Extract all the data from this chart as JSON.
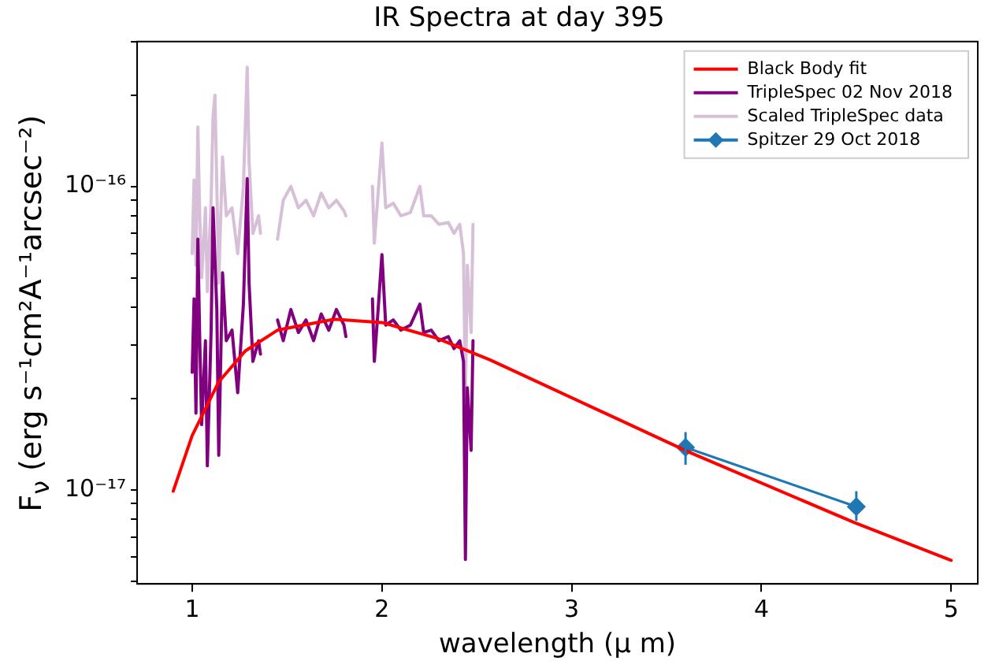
{
  "chart_data": {
    "type": "line",
    "title": "IR Spectra at day 395",
    "xlabel": "wavelength (μ m)",
    "ylabel": "F$_{ν}$ (erg s⁻¹cm²A⁻¹arcsec⁻²)",
    "log": "y",
    "grid": false,
    "legend": "top right",
    "xlim": [
      0.71,
      5.14
    ],
    "xticks": [
      1,
      2,
      3,
      4,
      5
    ],
    "ylim": [
      4.9e-18,
      3e-16
    ],
    "yticks": [
      {
        "value": 5e-18,
        "label": null
      },
      {
        "value": 6e-18,
        "label": null
      },
      {
        "value": 7e-18,
        "label": null
      },
      {
        "value": 8e-18,
        "label": null
      },
      {
        "value": 9e-18,
        "label": null
      },
      {
        "value": 1e-17,
        "label": "10⁻¹⁷"
      },
      {
        "value": 2e-17,
        "label": null
      },
      {
        "value": 3e-17,
        "label": null
      },
      {
        "value": 4e-17,
        "label": null
      },
      {
        "value": 5e-17,
        "label": null
      },
      {
        "value": 6e-17,
        "label": null
      },
      {
        "value": 7e-17,
        "label": null
      },
      {
        "value": 8e-17,
        "label": null
      },
      {
        "value": 9e-17,
        "label": null
      },
      {
        "value": 1e-16,
        "label": "10⁻¹⁶"
      },
      {
        "value": 2e-16,
        "label": null
      },
      {
        "value": 3e-16,
        "label": null
      }
    ],
    "series": [
      {
        "name": "Black Body fit",
        "color": "#ff0000",
        "marker": "none",
        "x": [
          0.9,
          1.0,
          1.14,
          1.28,
          1.45,
          1.75,
          2.0,
          2.29,
          2.47,
          2.57,
          3.62,
          4.49,
          5.0
        ],
        "values": [
          9.9e-18,
          1.51e-17,
          2.27e-17,
          2.87e-17,
          3.36e-17,
          3.65e-17,
          3.56e-17,
          3.16e-17,
          2.84e-17,
          2.68e-17,
          1.33e-17,
          7.8e-18,
          5.86e-18
        ]
      },
      {
        "name": "TripleSpec 02 Nov 2018",
        "color": "#800080",
        "marker": "none",
        "x": [
          1.0,
          1.01,
          1.02,
          1.03,
          1.04,
          1.05,
          1.07,
          1.08,
          1.1,
          1.11,
          1.13,
          1.14,
          1.16,
          1.18,
          1.21,
          1.24,
          1.27,
          1.29,
          1.3,
          1.32,
          1.35,
          1.36,
          1.4,
          1.45,
          1.48,
          1.52,
          1.56,
          1.6,
          1.64,
          1.68,
          1.72,
          1.76,
          1.8,
          1.81,
          1.88,
          1.95,
          1.96,
          1.98,
          2.0,
          2.02,
          2.06,
          2.1,
          2.15,
          2.2,
          2.22,
          2.26,
          2.3,
          2.35,
          2.38,
          2.41,
          2.43,
          2.44,
          2.45,
          2.47,
          2.48
        ],
        "values": [
          2.44e-17,
          4.26e-17,
          1.79e-17,
          6.7e-17,
          3.1e-17,
          1.64e-17,
          3.1e-17,
          1.2e-17,
          3.36e-17,
          8.5e-17,
          3.93e-17,
          1.3e-17,
          5.19e-17,
          3.1e-17,
          3.36e-17,
          2.09e-17,
          4.09e-17,
          1.06e-16,
          4.79e-17,
          2.65e-17,
          3.1e-17,
          2.8e-17,
          null,
          3.63e-17,
          3.1e-17,
          3.93e-17,
          3.3e-17,
          3.63e-17,
          3.1e-17,
          3.8e-17,
          3.36e-17,
          3.93e-17,
          3.49e-17,
          3.2e-17,
          null,
          4.26e-17,
          2.65e-17,
          3.93e-17,
          5.96e-17,
          3.49e-17,
          3.63e-17,
          3.36e-17,
          3.49e-17,
          4.09e-17,
          3.3e-17,
          3.36e-17,
          3.1e-17,
          3.2e-17,
          2.92e-17,
          3.1e-17,
          2.65e-17,
          5.9e-18,
          2.17e-17,
          1.35e-17,
          3.1e-17
        ]
      },
      {
        "name": "Scaled TripleSpec data",
        "color": "#d8bfd8",
        "marker": "none",
        "x": [
          1.0,
          1.01,
          1.02,
          1.03,
          1.04,
          1.05,
          1.07,
          1.08,
          1.1,
          1.11,
          1.12,
          1.13,
          1.14,
          1.16,
          1.18,
          1.21,
          1.24,
          1.27,
          1.29,
          1.3,
          1.32,
          1.35,
          1.36,
          1.4,
          1.45,
          1.48,
          1.52,
          1.56,
          1.6,
          1.64,
          1.68,
          1.72,
          1.76,
          1.8,
          1.81,
          1.88,
          1.95,
          1.96,
          1.98,
          2.0,
          2.02,
          2.06,
          2.1,
          2.15,
          2.2,
          2.22,
          2.26,
          2.3,
          2.35,
          2.38,
          2.41,
          2.43,
          2.44,
          2.45,
          2.47,
          2.48
        ],
        "values": [
          6e-17,
          1.05e-16,
          5.5e-17,
          1.57e-16,
          8e-17,
          5e-17,
          8.5e-17,
          4.5e-17,
          9e-17,
          1.7e-16,
          2e-16,
          1e-16,
          4.8e-17,
          1.25e-16,
          8e-17,
          8.5e-17,
          6e-17,
          1e-16,
          2.47e-16,
          1.2e-16,
          7e-17,
          8e-17,
          7e-17,
          null,
          6.7e-17,
          9e-17,
          1e-16,
          8.5e-17,
          9e-17,
          8e-17,
          9.5e-17,
          8.5e-17,
          9e-17,
          8.3e-17,
          8e-17,
          null,
          1e-16,
          6.5e-17,
          9.5e-17,
          1.39e-16,
          8.5e-17,
          8.8e-17,
          8e-17,
          8.2e-17,
          1e-16,
          8e-17,
          8e-17,
          7.5e-17,
          7.6e-17,
          7e-17,
          7.5e-17,
          6e-17,
          2e-17,
          5.5e-17,
          3.3e-17,
          7.5e-17
        ]
      },
      {
        "name": "Spitzer 29 Oct 2018",
        "color": "#1f77b4",
        "marker": "diamond",
        "x": [
          3.6,
          4.5
        ],
        "values": [
          1.38e-17,
          8.8e-18
        ],
        "errors": [
          [
            1.21e-17,
            1.55e-17
          ],
          [
            7.9e-18,
            9.9e-18
          ]
        ]
      }
    ]
  }
}
